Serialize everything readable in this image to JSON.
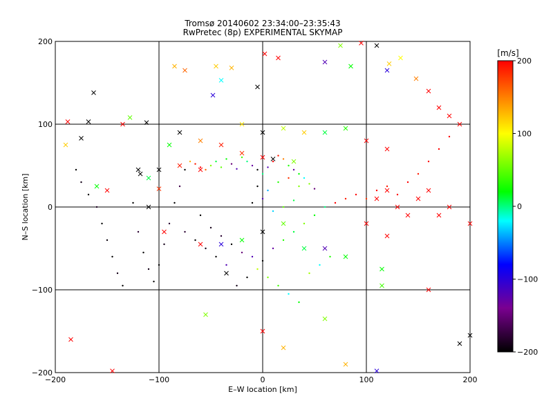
{
  "chart_data": {
    "type": "scatter",
    "title_line1": "Tromsø 20140602 23:34:00–23:35:43",
    "title_line2": "RwPretec (8p) EXPERIMENTAL SKYMAP",
    "xlabel": "E–W location [km]",
    "ylabel": "N–S location [km]",
    "xlim": [
      -200,
      200
    ],
    "ylim": [
      -200,
      200
    ],
    "x_ticks": [
      "−200",
      "−100",
      "0",
      "100",
      "200"
    ],
    "y_ticks": [
      "−200",
      "−100",
      "0",
      "100",
      "200"
    ],
    "grid_lines": [
      -100,
      0,
      100
    ],
    "grid": true,
    "colorbar": {
      "label": "[m/s]",
      "range": [
        -200,
        200
      ],
      "ticks": [
        "200",
        "100",
        "0",
        "−100",
        "−200"
      ],
      "colors": [
        "#000000",
        "#7a0090",
        "#0000ff",
        "#00ffff",
        "#00ff00",
        "#ffff00",
        "#ff0000"
      ]
    },
    "series": [
      {
        "marker": "dot",
        "points": [
          [
            -180,
            45,
            -200
          ],
          [
            -175,
            30,
            -190
          ],
          [
            -168,
            15,
            -200
          ],
          [
            -160,
            0,
            -185
          ],
          [
            -155,
            -20,
            -200
          ],
          [
            -150,
            -40,
            -195
          ],
          [
            -145,
            -60,
            -200
          ],
          [
            -140,
            -80,
            -190
          ],
          [
            -135,
            -95,
            -200
          ],
          [
            -125,
            5,
            -200
          ],
          [
            -120,
            -30,
            -180
          ],
          [
            -115,
            -55,
            -200
          ],
          [
            -110,
            -75,
            -190
          ],
          [
            -105,
            -90,
            -200
          ],
          [
            -100,
            -70,
            -200
          ],
          [
            -95,
            -45,
            -190
          ],
          [
            -90,
            -20,
            -180
          ],
          [
            -85,
            5,
            -200
          ],
          [
            -80,
            25,
            -170
          ],
          [
            -75,
            45,
            -200
          ],
          [
            -70,
            55,
            130
          ],
          [
            -65,
            52,
            190
          ],
          [
            -60,
            48,
            200
          ],
          [
            -55,
            45,
            160
          ],
          [
            -50,
            50,
            60
          ],
          [
            -45,
            55,
            10
          ],
          [
            -40,
            48,
            50
          ],
          [
            -35,
            58,
            20
          ],
          [
            -30,
            52,
            -150
          ],
          [
            -25,
            46,
            -120
          ],
          [
            -20,
            60,
            40
          ],
          [
            -15,
            55,
            0
          ],
          [
            -10,
            50,
            -130
          ],
          [
            -5,
            45,
            -200
          ],
          [
            0,
            40,
            0
          ],
          [
            5,
            48,
            -120
          ],
          [
            10,
            55,
            200
          ],
          [
            15,
            62,
            190
          ],
          [
            20,
            58,
            150
          ],
          [
            25,
            50,
            30
          ],
          [
            30,
            45,
            -130
          ],
          [
            35,
            40,
            20
          ],
          [
            40,
            35,
            -20
          ],
          [
            45,
            28,
            60
          ],
          [
            50,
            22,
            -150
          ],
          [
            -60,
            -10,
            -200
          ],
          [
            -50,
            -25,
            -190
          ],
          [
            -40,
            -35,
            -180
          ],
          [
            -30,
            -45,
            -200
          ],
          [
            -20,
            -55,
            -150
          ],
          [
            -10,
            -60,
            -120
          ],
          [
            0,
            -65,
            -200
          ],
          [
            10,
            -50,
            -130
          ],
          [
            20,
            -40,
            30
          ],
          [
            30,
            -30,
            10
          ],
          [
            40,
            -20,
            60
          ],
          [
            50,
            -10,
            20
          ],
          [
            60,
            0,
            0
          ],
          [
            70,
            5,
            200
          ],
          [
            80,
            10,
            190
          ],
          [
            90,
            15,
            200
          ],
          [
            100,
            10,
            180
          ],
          [
            110,
            20,
            200
          ],
          [
            120,
            25,
            190
          ],
          [
            130,
            15,
            200
          ],
          [
            140,
            30,
            200
          ],
          [
            150,
            40,
            190
          ],
          [
            160,
            55,
            200
          ],
          [
            170,
            70,
            200
          ],
          [
            180,
            85,
            200
          ],
          [
            -5,
            -75,
            80
          ],
          [
            5,
            -85,
            60
          ],
          [
            15,
            -95,
            40
          ],
          [
            25,
            -105,
            -20
          ],
          [
            35,
            -115,
            20
          ],
          [
            45,
            -80,
            70
          ],
          [
            55,
            -70,
            -20
          ],
          [
            65,
            -60,
            30
          ],
          [
            -15,
            -85,
            -200
          ],
          [
            -25,
            -95,
            -190
          ],
          [
            -35,
            -70,
            -120
          ],
          [
            -45,
            -60,
            -200
          ],
          [
            -55,
            -50,
            -190
          ],
          [
            -65,
            -40,
            -200
          ],
          [
            -75,
            -30,
            -180
          ],
          [
            0,
            10,
            -120
          ],
          [
            -10,
            5,
            -200
          ],
          [
            10,
            -5,
            -30
          ],
          [
            20,
            0,
            50
          ],
          [
            30,
            8,
            10
          ],
          [
            5,
            20,
            -40
          ],
          [
            -5,
            25,
            -200
          ],
          [
            15,
            30,
            30
          ],
          [
            25,
            35,
            180
          ],
          [
            35,
            25,
            60
          ]
        ]
      },
      {
        "marker": "cross",
        "points": [
          [
            -163,
            138,
            -200
          ],
          [
            -168,
            103,
            -200
          ],
          [
            -175,
            83,
            -200
          ],
          [
            -112,
            102,
            -200
          ],
          [
            -135,
            100,
            200
          ],
          [
            -128,
            108,
            50
          ],
          [
            -188,
            103,
            200
          ],
          [
            -190,
            75,
            120
          ],
          [
            -85,
            170,
            130
          ],
          [
            -75,
            165,
            160
          ],
          [
            -45,
            170,
            120
          ],
          [
            -30,
            168,
            130
          ],
          [
            -48,
            135,
            -100
          ],
          [
            -40,
            153,
            -20
          ],
          [
            -5,
            145,
            -200
          ],
          [
            2,
            185,
            200
          ],
          [
            15,
            180,
            200
          ],
          [
            75,
            195,
            60
          ],
          [
            95,
            198,
            200
          ],
          [
            110,
            195,
            -200
          ],
          [
            122,
            173,
            120
          ],
          [
            133,
            180,
            100
          ],
          [
            120,
            165,
            -100
          ],
          [
            148,
            155,
            150
          ],
          [
            160,
            140,
            200
          ],
          [
            170,
            120,
            200
          ],
          [
            180,
            110,
            200
          ],
          [
            190,
            100,
            200
          ],
          [
            60,
            175,
            -120
          ],
          [
            85,
            170,
            20
          ],
          [
            -80,
            90,
            -200
          ],
          [
            -60,
            80,
            150
          ],
          [
            -20,
            100,
            110
          ],
          [
            0,
            90,
            -200
          ],
          [
            20,
            95,
            80
          ],
          [
            40,
            90,
            120
          ],
          [
            60,
            90,
            10
          ],
          [
            80,
            95,
            30
          ],
          [
            100,
            80,
            200
          ],
          [
            120,
            70,
            200
          ],
          [
            -40,
            75,
            190
          ],
          [
            -20,
            65,
            180
          ],
          [
            0,
            60,
            200
          ],
          [
            10,
            58,
            -200
          ],
          [
            30,
            55,
            60
          ],
          [
            -100,
            45,
            -200
          ],
          [
            -110,
            35,
            10
          ],
          [
            -150,
            20,
            200
          ],
          [
            -160,
            25,
            20
          ],
          [
            -100,
            22,
            180
          ],
          [
            -90,
            75,
            20
          ],
          [
            -60,
            45,
            200
          ],
          [
            -80,
            50,
            190
          ],
          [
            -110,
            0,
            -200
          ],
          [
            -95,
            -30,
            200
          ],
          [
            -60,
            -45,
            200
          ],
          [
            -40,
            -45,
            -100
          ],
          [
            -20,
            -40,
            20
          ],
          [
            0,
            -30,
            -200
          ],
          [
            20,
            -20,
            50
          ],
          [
            40,
            -50,
            10
          ],
          [
            60,
            -50,
            -120
          ],
          [
            80,
            -60,
            20
          ],
          [
            100,
            -20,
            200
          ],
          [
            110,
            10,
            200
          ],
          [
            120,
            20,
            200
          ],
          [
            130,
            0,
            200
          ],
          [
            140,
            -10,
            200
          ],
          [
            150,
            10,
            200
          ],
          [
            160,
            20,
            200
          ],
          [
            170,
            -10,
            200
          ],
          [
            180,
            0,
            200
          ],
          [
            200,
            -20,
            200
          ],
          [
            160,
            -100,
            200
          ],
          [
            190,
            -165,
            -200
          ],
          [
            200,
            -155,
            -200
          ],
          [
            -185,
            -160,
            200
          ],
          [
            -145,
            -198,
            200
          ],
          [
            0,
            -150,
            200
          ],
          [
            20,
            -170,
            130
          ],
          [
            80,
            -190,
            130
          ],
          [
            110,
            -198,
            -100
          ],
          [
            60,
            -135,
            60
          ],
          [
            -55,
            -130,
            60
          ],
          [
            -35,
            -80,
            -200
          ],
          [
            115,
            -75,
            20
          ],
          [
            115,
            -95,
            40
          ],
          [
            120,
            -35,
            200
          ],
          [
            -120,
            45,
            -200
          ],
          [
            -118,
            40,
            -200
          ]
        ]
      }
    ]
  }
}
